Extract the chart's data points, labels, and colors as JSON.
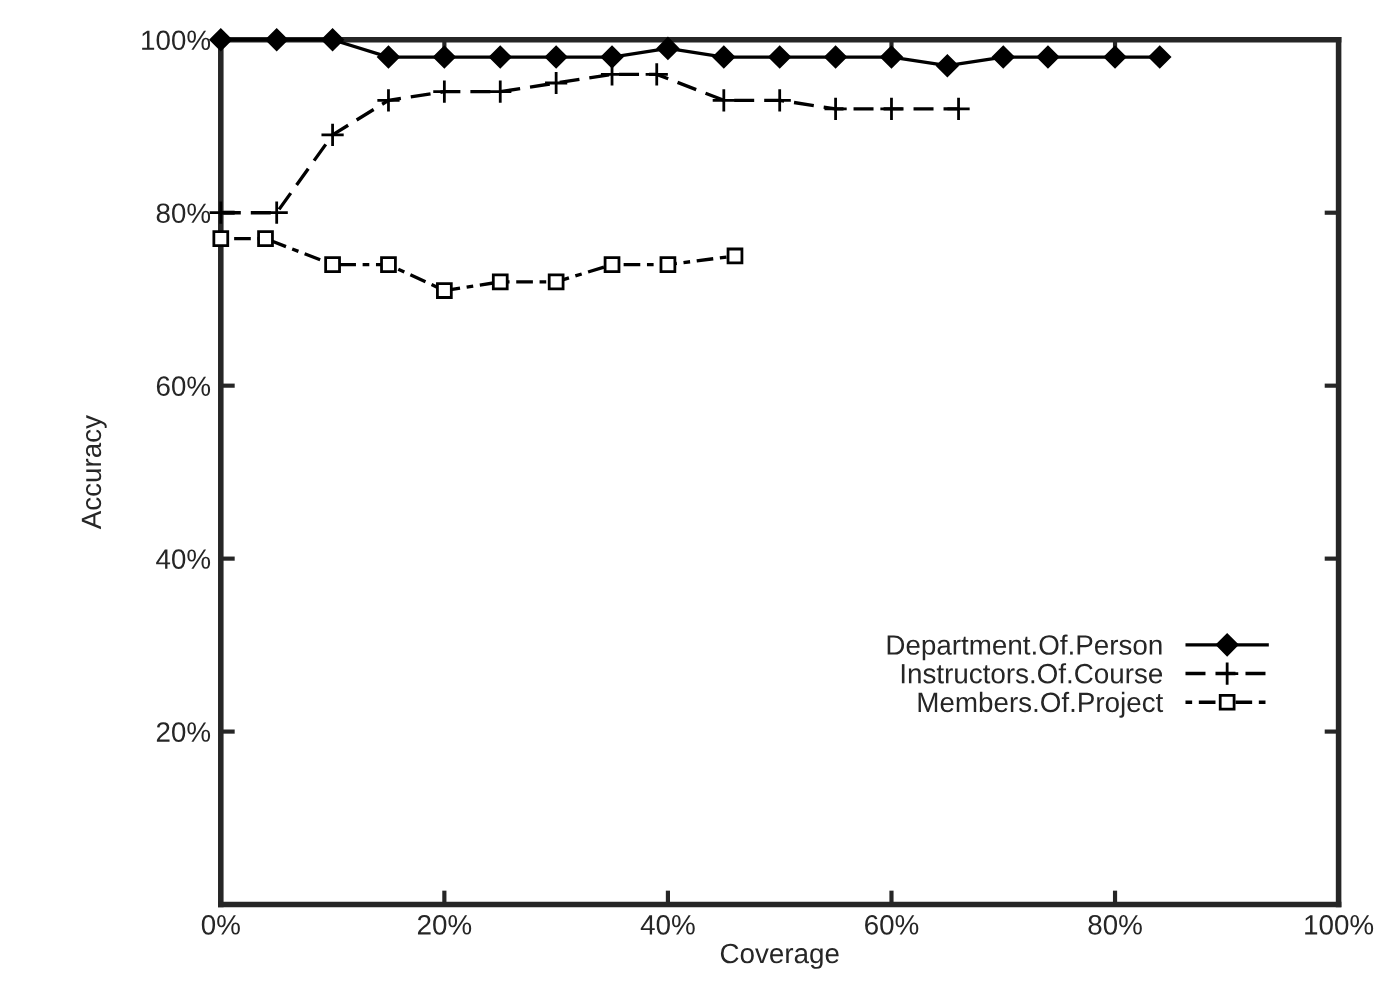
{
  "chart_data": {
    "type": "line",
    "xlabel": "Coverage",
    "ylabel": "Accuracy",
    "xlim": [
      0,
      100
    ],
    "ylim": [
      0,
      100
    ],
    "xticks": [
      {
        "value": 0,
        "label": "0%"
      },
      {
        "value": 20,
        "label": "20%"
      },
      {
        "value": 40,
        "label": "40%"
      },
      {
        "value": 60,
        "label": "60%"
      },
      {
        "value": 80,
        "label": "80%"
      },
      {
        "value": 100,
        "label": "100%"
      }
    ],
    "yticks": [
      {
        "value": 20,
        "label": "20%"
      },
      {
        "value": 40,
        "label": "40%"
      },
      {
        "value": 60,
        "label": "60%"
      },
      {
        "value": 80,
        "label": "80%"
      },
      {
        "value": 100,
        "label": "100%"
      }
    ],
    "grid": false,
    "legend": "bottom right",
    "series": [
      {
        "name": "Department.Of.Person",
        "color": "#000000",
        "marker": "diamond",
        "line_style": "solid",
        "x": [
          0,
          5,
          10,
          15,
          20,
          25,
          30,
          35,
          40,
          45,
          50,
          55,
          60,
          65,
          70,
          74,
          80,
          84
        ],
        "values": [
          100,
          100,
          100,
          98,
          98,
          98,
          98,
          98,
          99,
          98,
          98,
          98,
          98,
          97,
          98,
          98,
          98,
          98
        ]
      },
      {
        "name": "Instructors.Of.Course",
        "color": "#000000",
        "marker": "cross",
        "line_style": "dashed",
        "x": [
          0,
          5,
          10,
          15,
          20,
          25,
          30,
          35,
          39,
          45,
          50,
          55,
          60,
          66
        ],
        "values": [
          80,
          80,
          89,
          93,
          94,
          94,
          95,
          96,
          96,
          93,
          93,
          92,
          92,
          92
        ]
      },
      {
        "name": "Members.Of.Project",
        "color": "#000000",
        "marker": "square",
        "line_style": "dotted",
        "x": [
          0,
          4,
          10,
          15,
          20,
          25,
          30,
          35,
          40,
          46
        ],
        "values": [
          77,
          77,
          74,
          74,
          71,
          72,
          72,
          74,
          74,
          75
        ]
      }
    ]
  }
}
